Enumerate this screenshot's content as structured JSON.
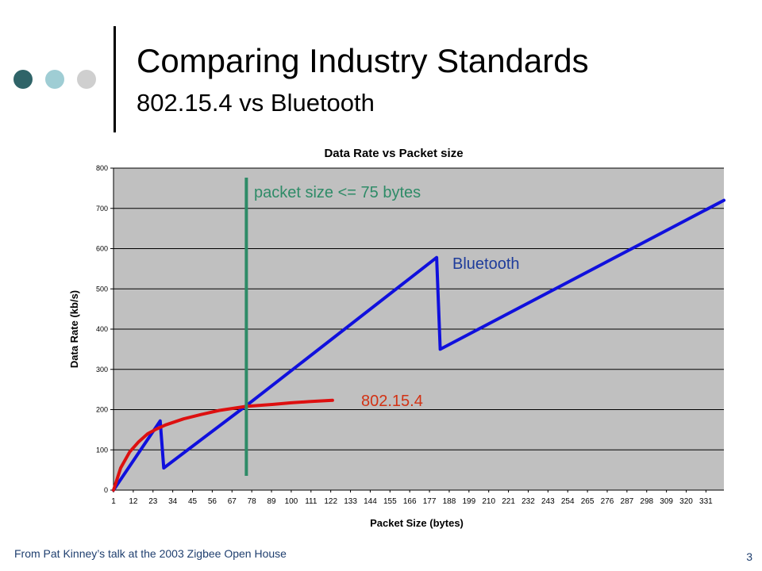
{
  "slide": {
    "title": "Comparing Industry Standards",
    "subtitle": "802.15.4 vs Bluetooth",
    "footer": "From Pat Kinney’s talk at the 2003 Zigbee Open House",
    "page_number": "3",
    "bullet_colors": [
      "#2f6468",
      "#9fcdd4",
      "#cfcfcf"
    ]
  },
  "chart_data": {
    "type": "line",
    "title": "Data Rate vs Packet size",
    "xlabel": "Packet Size (bytes)",
    "ylabel": "Data Rate (kb/s)",
    "ylim": [
      0,
      800
    ],
    "xlim": [
      1,
      341
    ],
    "yticks": [
      0,
      100,
      200,
      300,
      400,
      500,
      600,
      700,
      800
    ],
    "xticks": [
      1,
      12,
      23,
      34,
      45,
      56,
      67,
      78,
      89,
      100,
      111,
      122,
      133,
      144,
      155,
      166,
      177,
      188,
      199,
      210,
      221,
      232,
      243,
      254,
      265,
      276,
      287,
      298,
      309,
      320,
      331
    ],
    "grid": true,
    "plot_background": "#c0c0c0",
    "series": [
      {
        "name": "Bluetooth",
        "color": "#1010dd",
        "points": [
          [
            1,
            0
          ],
          [
            27,
            172
          ],
          [
            29,
            55
          ],
          [
            75,
            210
          ],
          [
            181,
            578
          ],
          [
            183,
            350
          ],
          [
            341,
            720
          ]
        ]
      },
      {
        "name": "802.15.4",
        "color": "#dd1010",
        "points": [
          [
            1,
            0
          ],
          [
            5,
            55
          ],
          [
            10,
            95
          ],
          [
            15,
            120
          ],
          [
            20,
            140
          ],
          [
            25,
            152
          ],
          [
            30,
            162
          ],
          [
            40,
            177
          ],
          [
            50,
            188
          ],
          [
            60,
            198
          ],
          [
            75,
            208
          ],
          [
            90,
            213
          ],
          [
            100,
            217
          ],
          [
            110,
            220
          ],
          [
            123,
            223
          ]
        ]
      }
    ],
    "annotations": [
      {
        "text": "packet size <= 75 bytes",
        "x": 75,
        "color": "#2e8b67"
      },
      {
        "text": "Bluetooth",
        "color": "#1e3c9b"
      },
      {
        "text": "802.15.4",
        "color": "#d23214"
      }
    ]
  }
}
